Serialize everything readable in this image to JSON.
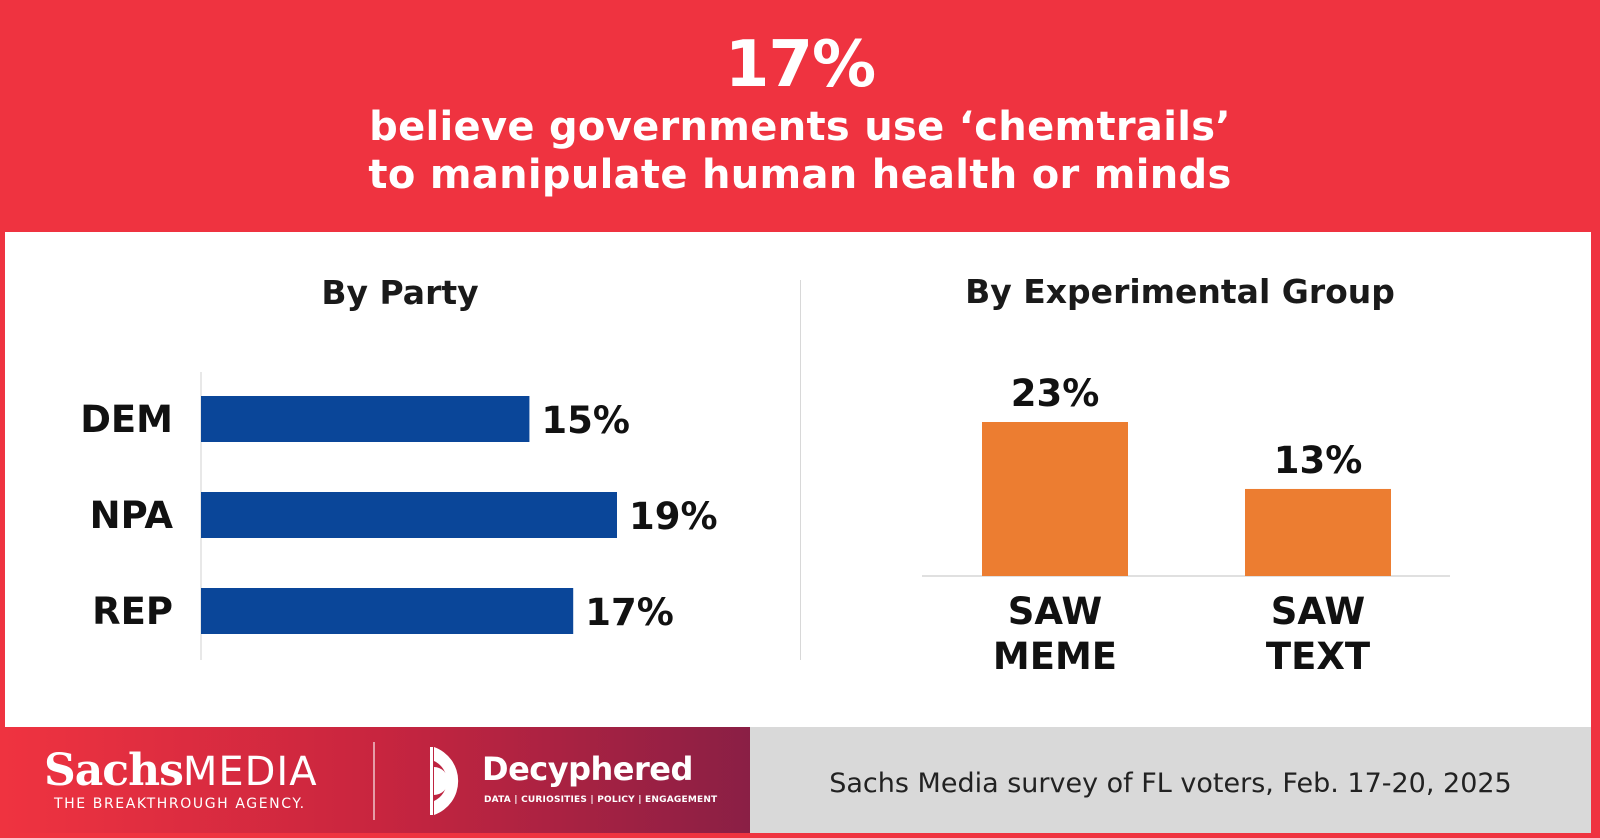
{
  "header": {
    "headline_value": "17%",
    "headline_line1": "believe governments use ‘chemtrails’",
    "headline_line2": "to manipulate human health or minds"
  },
  "chart_data": [
    {
      "type": "bar",
      "orientation": "horizontal",
      "title": "By Party",
      "categories": [
        "DEM",
        "NPA",
        "REP"
      ],
      "values": [
        15,
        19,
        17
      ],
      "value_labels": [
        "15%",
        "19%",
        "17%"
      ],
      "unit": "%",
      "xlim": [
        0,
        20
      ],
      "color": "#0a4699",
      "grid": false
    },
    {
      "type": "bar",
      "orientation": "vertical",
      "title": "By Experimental Group",
      "categories": [
        [
          "SAW",
          "MEME"
        ],
        [
          "SAW",
          "TEXT"
        ]
      ],
      "values": [
        23,
        13
      ],
      "value_labels": [
        "23%",
        "13%"
      ],
      "unit": "%",
      "ylim": [
        0,
        25
      ],
      "color": "#ec7d31",
      "grid": false
    }
  ],
  "footer": {
    "sachs_name": "Sachs",
    "sachs_media": "MEDIA",
    "sachs_tagline": "THE BREAKTHROUGH AGENCY.",
    "decyphered_name": "Decyphered",
    "decyphered_tagline": "DATA | CURIOSITIES | POLICY | ENGAGEMENT",
    "source": "Sachs Media survey of FL voters, Feb. 17-20, 2025"
  },
  "colors": {
    "brand_red": "#ef3340",
    "bar_blue": "#0a4699",
    "bar_orange": "#ec7d31",
    "footer_grey": "#d9d9d9"
  }
}
